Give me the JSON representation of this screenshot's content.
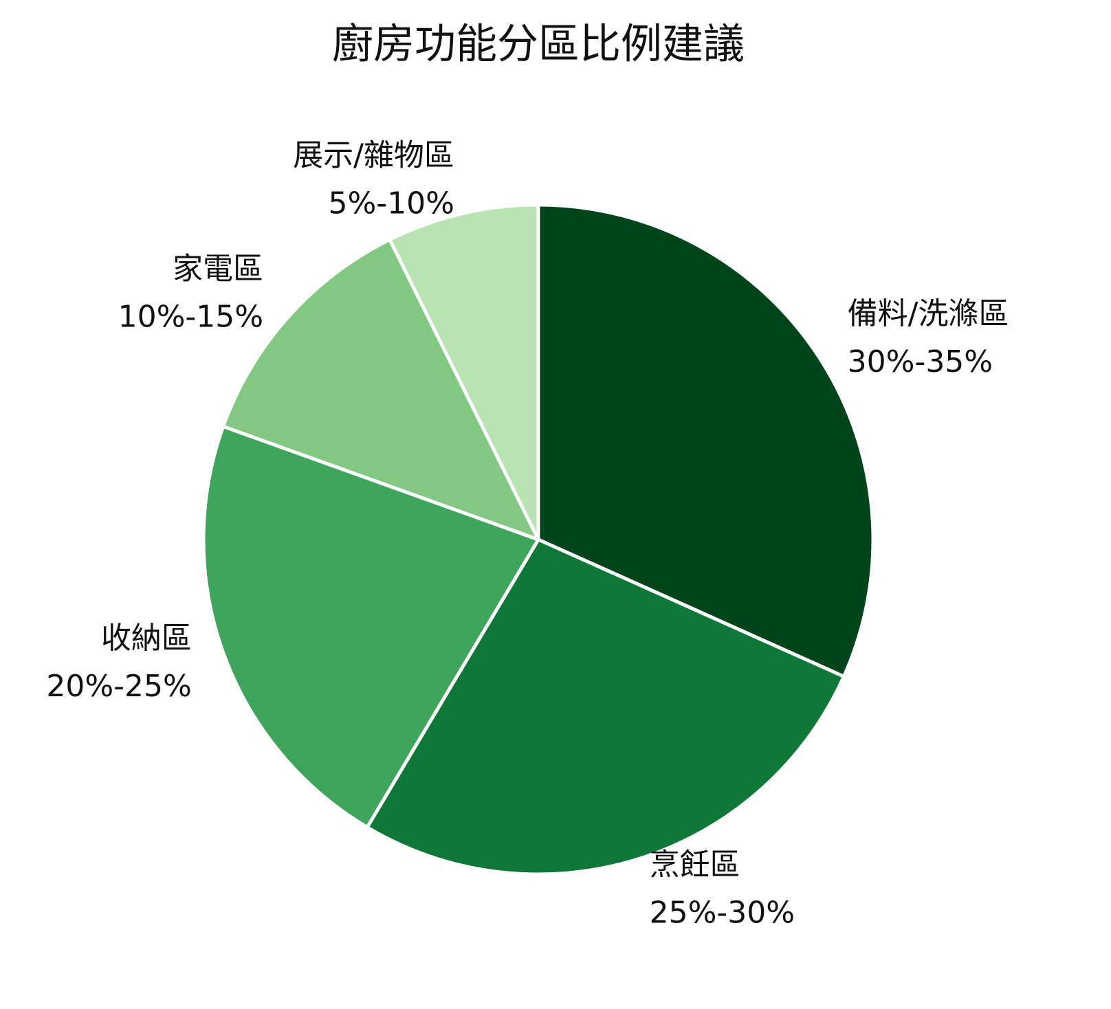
{
  "chart_data": {
    "type": "pie",
    "title": "廚房功能分區比例建議",
    "categories": [
      "備料/洗滌區",
      "烹飪區",
      "收納區",
      "家電區",
      "展示/雜物區"
    ],
    "values": [
      32.5,
      27.5,
      22.5,
      12.5,
      7.5
    ],
    "value_labels": [
      "30%-35%",
      "25%-30%",
      "20%-25%",
      "10%-15%",
      "5%-10%"
    ],
    "colors": [
      "#00441b",
      "#0f7737",
      "#3fa45c",
      "#83c882",
      "#b9e3b3"
    ]
  }
}
